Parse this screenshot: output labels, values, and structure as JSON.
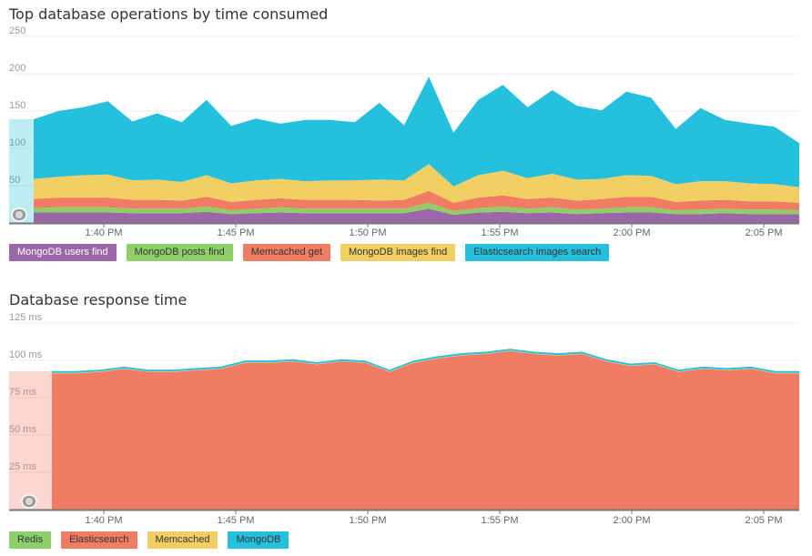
{
  "charts": [
    {
      "title": "Top database operations by time consumed",
      "chart_data": {
        "type": "area",
        "stacked": true,
        "title": "Top database operations by time consumed",
        "ylim": [
          0,
          250
        ],
        "yticks": [
          "250",
          "200",
          "150",
          "100",
          "50"
        ],
        "xticks": [
          "1:40 PM",
          "1:45 PM",
          "1:50 PM",
          "1:55 PM",
          "2:00 PM",
          "2:05 PM"
        ],
        "grid": true,
        "legend_placement": "bottom",
        "series": [
          {
            "name": "MongoDB users find",
            "color": "#9b67a8",
            "values": [
              14,
              14,
              14,
              14,
              13,
              13,
              13,
              15,
              12,
              13,
              14,
              13,
              13,
              13,
              13,
              13,
              19,
              11,
              14,
              15,
              13,
              14,
              12,
              13,
              14,
              14,
              12,
              12,
              13,
              12,
              12,
              12
            ]
          },
          {
            "name": "MongoDB posts find",
            "color": "#8fcf6a",
            "values": [
              6,
              7,
              7,
              7,
              6,
              6,
              6,
              7,
              5,
              6,
              7,
              6,
              6,
              6,
              6,
              6,
              8,
              5,
              6,
              7,
              6,
              7,
              6,
              6,
              7,
              7,
              5,
              6,
              6,
              6,
              6,
              5
            ]
          },
          {
            "name": "Memcached get",
            "color": "#f07c64",
            "values": [
              12,
              13,
              13,
              13,
              12,
              12,
              11,
              13,
              11,
              12,
              12,
              12,
              12,
              12,
              11,
              12,
              16,
              11,
              14,
              15,
              13,
              13,
              12,
              13,
              14,
              14,
              11,
              12,
              12,
              11,
              11,
              10
            ]
          },
          {
            "name": "MongoDB images find",
            "color": "#f2cf63",
            "values": [
              27,
              28,
              30,
              31,
              26,
              27,
              25,
              29,
              25,
              26,
              26,
              25,
              26,
              26,
              28,
              26,
              36,
              22,
              30,
              33,
              28,
              32,
              28,
              27,
              29,
              28,
              24,
              26,
              25,
              24,
              23,
              21
            ]
          },
          {
            "name": "Elasticsearch images search",
            "color": "#25c0de",
            "values": [
              80,
              88,
              91,
              98,
              79,
              89,
              80,
              101,
              77,
              83,
              74,
              82,
              81,
              78,
              103,
              74,
              117,
              72,
              101,
              115,
              95,
              112,
              99,
              92,
              112,
              105,
              74,
              98,
              82,
              80,
              77,
              59
            ]
          }
        ]
      },
      "legend": [
        {
          "label": "MongoDB users find",
          "color": "#9b67a8",
          "dark": true
        },
        {
          "label": "MongoDB posts find",
          "color": "#8fcf6a",
          "dark": false
        },
        {
          "label": "Memcached get",
          "color": "#f07c64",
          "dark": false
        },
        {
          "label": "MongoDB images find",
          "color": "#f2cf63",
          "dark": false
        },
        {
          "label": "Elasticsearch images search",
          "color": "#25c0de",
          "dark": false
        }
      ]
    },
    {
      "title": "Database response time",
      "chart_data": {
        "type": "area",
        "stacked": true,
        "title": "Database response time",
        "ylim": [
          0,
          125
        ],
        "yticks": [
          "125 ms",
          "100 ms",
          "75 ms",
          "50 ms",
          "25 ms"
        ],
        "xticks": [
          "1:40 PM",
          "1:45 PM",
          "1:50 PM",
          "1:55 PM",
          "2:00 PM",
          "2:05 PM"
        ],
        "grid": true,
        "legend_placement": "bottom",
        "series": [
          {
            "name": "Redis",
            "color": "#8fcf6a",
            "values": [
              0.3,
              0.3,
              0.3,
              0.3,
              0.3,
              0.3,
              0.3,
              0.3,
              0.3,
              0.3,
              0.3,
              0.3,
              0.3,
              0.3,
              0.3,
              0.3,
              0.3,
              0.3,
              0.3,
              0.3,
              0.3,
              0.3,
              0.3,
              0.3,
              0.3,
              0.3,
              0.3,
              0.3,
              0.3,
              0.3,
              0.3,
              0.3
            ]
          },
          {
            "name": "Elasticsearch",
            "color": "#f07c64",
            "values": [
              91,
              91,
              92,
              94,
              92,
              92,
              93,
              94,
              98,
              98,
              99,
              97,
              99,
              98,
              92,
              98,
              101,
              103,
              104,
              106,
              104,
              103,
              104,
              99,
              96,
              97,
              92,
              94,
              93,
              94,
              91,
              91
            ]
          },
          {
            "name": "Memcached",
            "color": "#f2cf63",
            "values": [
              0.3,
              0.3,
              0.3,
              0.3,
              0.3,
              0.3,
              0.3,
              0.3,
              0.3,
              0.3,
              0.3,
              0.3,
              0.3,
              0.3,
              0.3,
              0.3,
              0.3,
              0.3,
              0.3,
              0.3,
              0.3,
              0.3,
              0.3,
              0.3,
              0.3,
              0.3,
              0.3,
              0.3,
              0.3,
              0.3,
              0.3,
              0.3
            ]
          },
          {
            "name": "MongoDB",
            "color": "#25c0de",
            "values": [
              1.2,
              1.2,
              1.2,
              1.2,
              1.2,
              1.2,
              1.2,
              1.2,
              1.2,
              1.2,
              1.2,
              1.2,
              1.2,
              1.2,
              1.2,
              1.2,
              1.2,
              1.2,
              1.2,
              1.2,
              1.2,
              1.2,
              1.2,
              1.2,
              1.2,
              1.2,
              1.2,
              1.2,
              1.2,
              1.2,
              1.2,
              1.2
            ]
          }
        ]
      },
      "legend": [
        {
          "label": "Redis",
          "color": "#8fcf6a",
          "dark": false
        },
        {
          "label": "Elasticsearch",
          "color": "#f07c64",
          "dark": false
        },
        {
          "label": "Memcached",
          "color": "#f2cf63",
          "dark": false
        },
        {
          "label": "MongoDB",
          "color": "#25c0de",
          "dark": false
        }
      ]
    }
  ]
}
